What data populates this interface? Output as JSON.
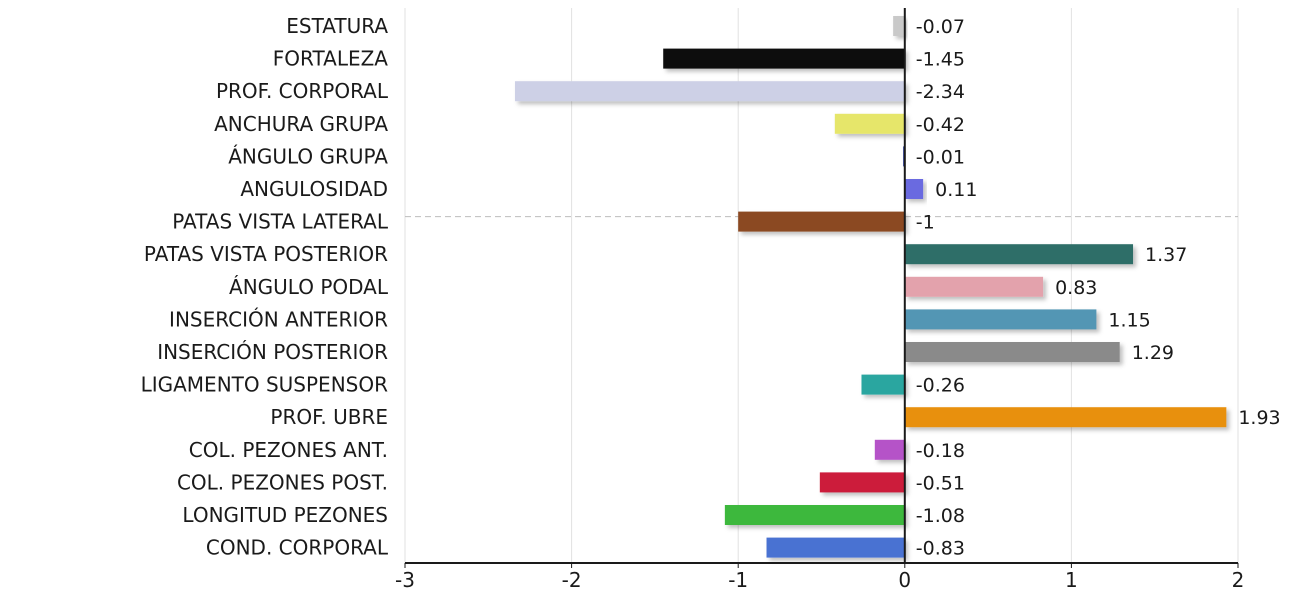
{
  "chart_data": {
    "type": "bar",
    "orientation": "horizontal",
    "title": "",
    "xlabel": "",
    "ylabel": "",
    "xlim": [
      -3,
      2
    ],
    "x_ticks": [
      "-3",
      "-2",
      "-1",
      "0",
      "1",
      "2"
    ],
    "grid": "vertical",
    "legend": "none",
    "reference_line_category": "PATAS VISTA LATERAL",
    "categories": [
      "ESTATURA",
      "FORTALEZA",
      "PROF. CORPORAL",
      "ANCHURA GRUPA",
      "ÁNGULO GRUPA",
      "ANGULOSIDAD",
      "PATAS VISTA LATERAL",
      "PATAS VISTA POSTERIOR",
      "ÁNGULO PODAL",
      "INSERCIÓN ANTERIOR",
      "INSERCIÓN POSTERIOR",
      "LIGAMENTO SUSPENSOR",
      "PROF. UBRE",
      "COL. PEZONES ANT.",
      "COL. PEZONES POST.",
      "LONGITUD PEZONES",
      "COND. CORPORAL"
    ],
    "values": [
      -0.07,
      -1.45,
      -2.34,
      -0.42,
      -0.01,
      0.11,
      -1,
      1.37,
      0.83,
      1.15,
      1.29,
      -0.26,
      1.93,
      -0.18,
      -0.51,
      -1.08,
      -0.83
    ],
    "value_labels": [
      "-0.07",
      "-1.45",
      "-2.34",
      "-0.42",
      "-0.01",
      "0.11",
      "-1",
      "1.37",
      "0.83",
      "1.15",
      "1.29",
      "-0.26",
      "1.93",
      "-0.18",
      "-0.51",
      "-1.08",
      "-0.83"
    ],
    "colors": [
      "#c9c9c9",
      "#0a0a0a",
      "#cdd0e6",
      "#e6e66a",
      "#2a3a9a",
      "#6a6ae0",
      "#8b4a22",
      "#2e6e68",
      "#e3a2ac",
      "#5296b4",
      "#8a8a8a",
      "#2aa6a0",
      "#e8900c",
      "#b552c8",
      "#cc1a3a",
      "#3cb83c",
      "#4a72d2"
    ]
  }
}
